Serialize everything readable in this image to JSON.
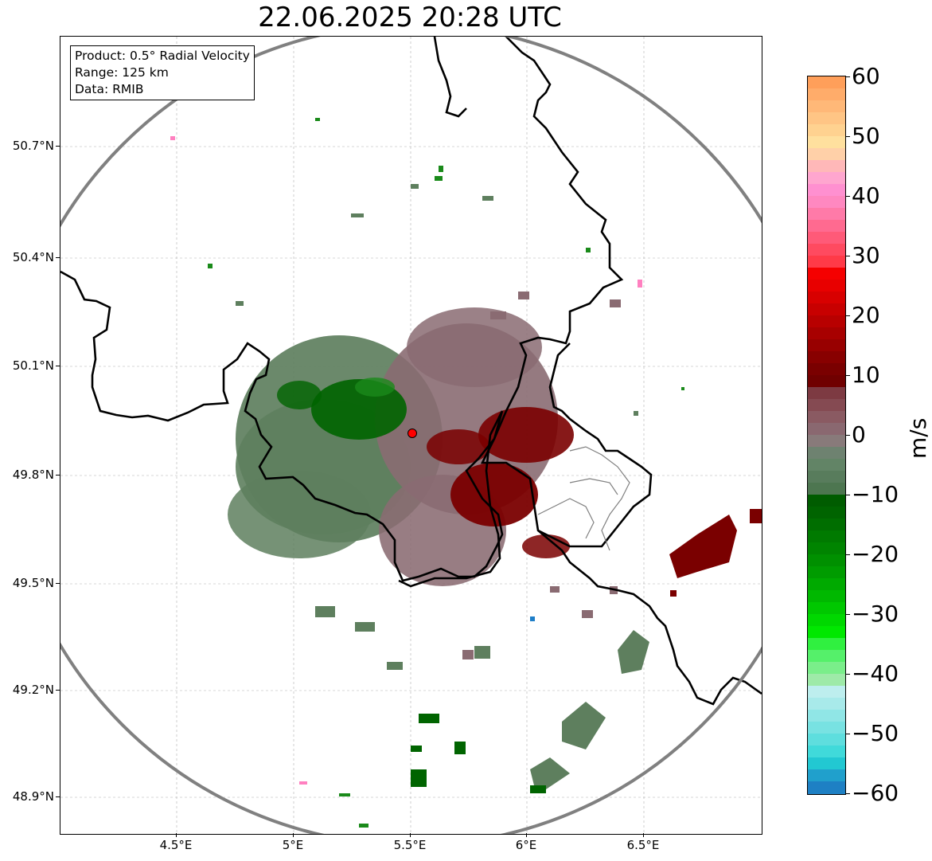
{
  "title": "22.06.2025 20:28 UTC",
  "info": {
    "product": "Product: 0.5° Radial Velocity",
    "range": "Range: 125 km",
    "data": "Data: RMIB"
  },
  "axes": {
    "lat_ticks": [
      "50.7°N",
      "50.4°N",
      "50.1°N",
      "49.8°N",
      "49.5°N",
      "49.2°N",
      "48.9°N"
    ],
    "lon_ticks": [
      "4.5°E",
      "5°E",
      "5.5°E",
      "6°E",
      "6.5°E"
    ]
  },
  "colorbar": {
    "unit": "m/s",
    "ticks": [
      "60",
      "50",
      "40",
      "30",
      "20",
      "10",
      "0",
      "−10",
      "−20",
      "−30",
      "−40",
      "−50",
      "−60"
    ],
    "range": [
      -60,
      60
    ]
  },
  "radar_site": {
    "lon": 5.5,
    "lat": 49.92
  },
  "colors": {
    "receding": "#7a0000",
    "approaching": "#006400",
    "near_zero_green": "#5e7f5e",
    "near_zero_pink": "#8a6b72",
    "border": "#000000",
    "range_ring": "#808080",
    "radar_marker": "#ff0000"
  }
}
